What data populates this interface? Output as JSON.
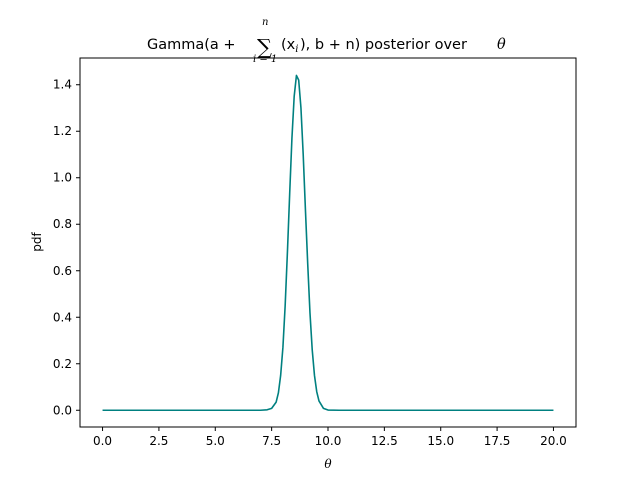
{
  "chart_data": {
    "type": "line",
    "title": {
      "prefix": "Gamma(a + ",
      "sigma": "∑",
      "upper": "n",
      "lower": "i = 1",
      "x_var": "(x",
      "x_sub": "i",
      "suffix": "), b + n) posterior over ",
      "theta": "θ"
    },
    "xlabel": "θ",
    "ylabel": "pdf",
    "xlim": [
      -1.0,
      21.0
    ],
    "ylim": [
      -0.072,
      1.515
    ],
    "xticks": [
      0.0,
      2.5,
      5.0,
      7.5,
      10.0,
      12.5,
      15.0,
      17.5,
      20.0
    ],
    "xtick_labels": [
      "0.0",
      "2.5",
      "5.0",
      "7.5",
      "10.0",
      "12.5",
      "15.0",
      "17.5",
      "20.0"
    ],
    "yticks": [
      0.0,
      0.2,
      0.4,
      0.6,
      0.8,
      1.0,
      1.2,
      1.4
    ],
    "ytick_labels": [
      "0.0",
      "0.2",
      "0.4",
      "0.6",
      "0.8",
      "1.0",
      "1.2",
      "1.4"
    ],
    "grid": false,
    "series": [
      {
        "color": "#008080",
        "x": [
          0.0,
          7.0,
          7.3,
          7.5,
          7.7,
          7.8,
          7.9,
          8.0,
          8.1,
          8.2,
          8.3,
          8.4,
          8.5,
          8.6,
          8.7,
          8.8,
          8.9,
          9.0,
          9.1,
          9.2,
          9.3,
          9.4,
          9.5,
          9.6,
          9.8,
          10.0,
          10.5,
          20.0
        ],
        "y": [
          0.0,
          0.0,
          0.002,
          0.008,
          0.035,
          0.075,
          0.15,
          0.27,
          0.45,
          0.68,
          0.93,
          1.17,
          1.35,
          1.44,
          1.42,
          1.3,
          1.1,
          0.86,
          0.63,
          0.42,
          0.26,
          0.15,
          0.08,
          0.04,
          0.008,
          0.001,
          0.0,
          0.0
        ]
      }
    ]
  }
}
